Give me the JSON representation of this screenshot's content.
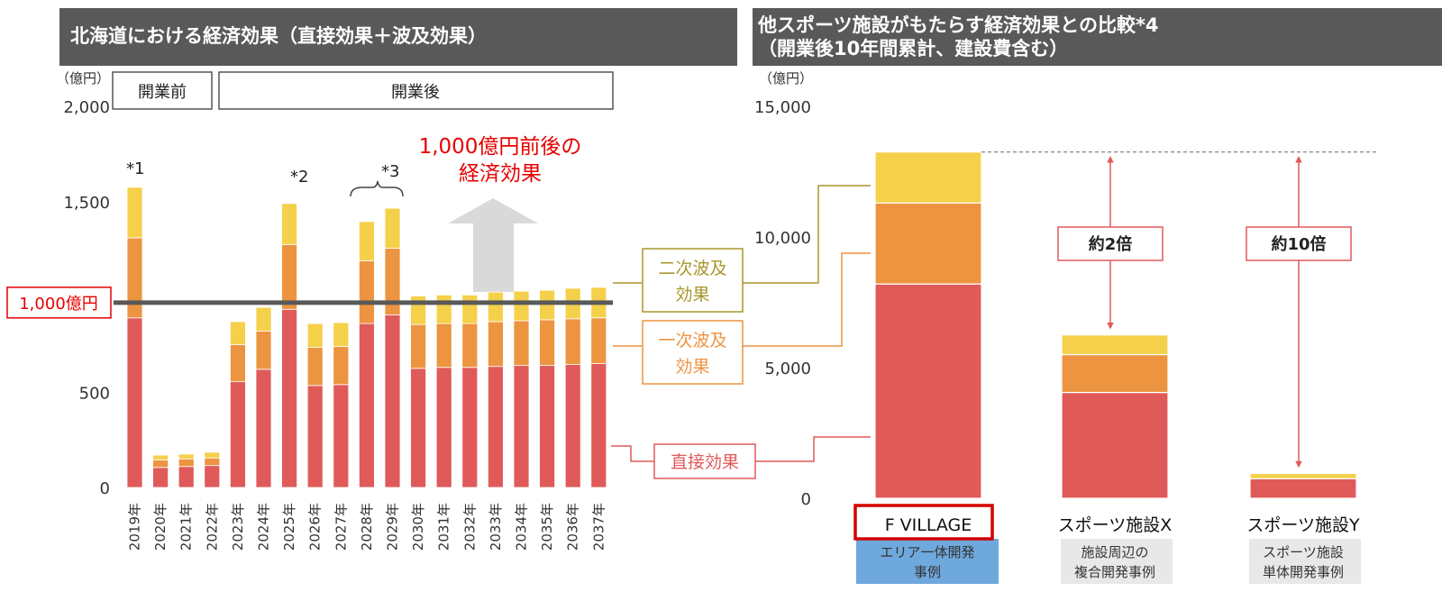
{
  "left_header": "北海道における経済効果（直接効果＋波及効果）",
  "right_header": {
    "line1": "他スポーツ施設がもたらす経済効果との比較*4",
    "line2": "（開業後10年間累計、建設費含む）"
  },
  "colors": {
    "direct": "#e05a5a",
    "primary": "#ed9441",
    "secondary": "#f5d04a",
    "red_text": "#e60000",
    "secondary_label": "#a8962a",
    "primary_label": "#ed9441",
    "direct_label": "#e05a5a",
    "highlight": "#d40000",
    "blue_tag": "#6fa8dc",
    "gray_tag": "#e8e8e8",
    "header_bg": "#595959"
  },
  "chart_data": [
    {
      "type": "bar",
      "stacked": true,
      "ylabel": "（億円）",
      "ylim": [
        0,
        2000
      ],
      "yticks": [
        "0",
        "500",
        "1,500",
        "2,000"
      ],
      "ytick_values": [
        0,
        500,
        1500,
        2000
      ],
      "categories": [
        "2019年",
        "2020年",
        "2021年",
        "2022年",
        "2023年",
        "2024年",
        "2025年",
        "2026年",
        "2027年",
        "2028年",
        "2029年",
        "2030年",
        "2031年",
        "2032年",
        "2033年",
        "2034年",
        "2035年",
        "2036年",
        "2037年"
      ],
      "series": [
        {
          "name": "直接効果",
          "values": [
            890,
            105,
            110,
            115,
            555,
            620,
            935,
            535,
            540,
            860,
            905,
            625,
            630,
            630,
            635,
            640,
            640,
            645,
            650
          ]
        },
        {
          "name": "一次波及効果",
          "values": [
            420,
            40,
            40,
            40,
            195,
            200,
            340,
            200,
            200,
            330,
            350,
            230,
            230,
            230,
            235,
            235,
            240,
            240,
            240
          ]
        },
        {
          "name": "二次波及効果",
          "values": [
            265,
            25,
            25,
            30,
            120,
            125,
            215,
            125,
            125,
            205,
            210,
            150,
            150,
            150,
            155,
            155,
            155,
            160,
            160
          ]
        }
      ],
      "reference_line": {
        "value": 970,
        "label": "1,000億円"
      },
      "period_labels": [
        "開業前",
        "開業後"
      ],
      "annotations": [
        "*1",
        "*2",
        "*3",
        "1,000億円前後の",
        "経済効果"
      ]
    },
    {
      "type": "bar",
      "stacked": true,
      "ylabel": "（億円）",
      "ylim": [
        0,
        15000
      ],
      "yticks": [
        "0",
        "5,000",
        "10,000",
        "15,000"
      ],
      "ytick_values": [
        0,
        5000,
        10000,
        15000
      ],
      "categories": [
        "F VILLAGE",
        "スポーツ施設X",
        "スポーツ施設Y"
      ],
      "category_tags": [
        "エリア一体開発\n事例",
        "施設周辺の\n複合開発事例",
        "スポーツ施設\n単体開発事例"
      ],
      "series": [
        {
          "name": "直接効果",
          "values": [
            8200,
            4050,
            750
          ]
        },
        {
          "name": "一次波及効果",
          "values": [
            3100,
            1450,
            0
          ]
        },
        {
          "name": "二次波及効果",
          "values": [
            1950,
            750,
            200
          ]
        }
      ],
      "comparisons": [
        "約2倍",
        "約10倍"
      ]
    }
  ],
  "legend_labels": {
    "secondary": "二次波及\n効果",
    "primary": "一次波及\n効果",
    "direct": "直接効果"
  }
}
